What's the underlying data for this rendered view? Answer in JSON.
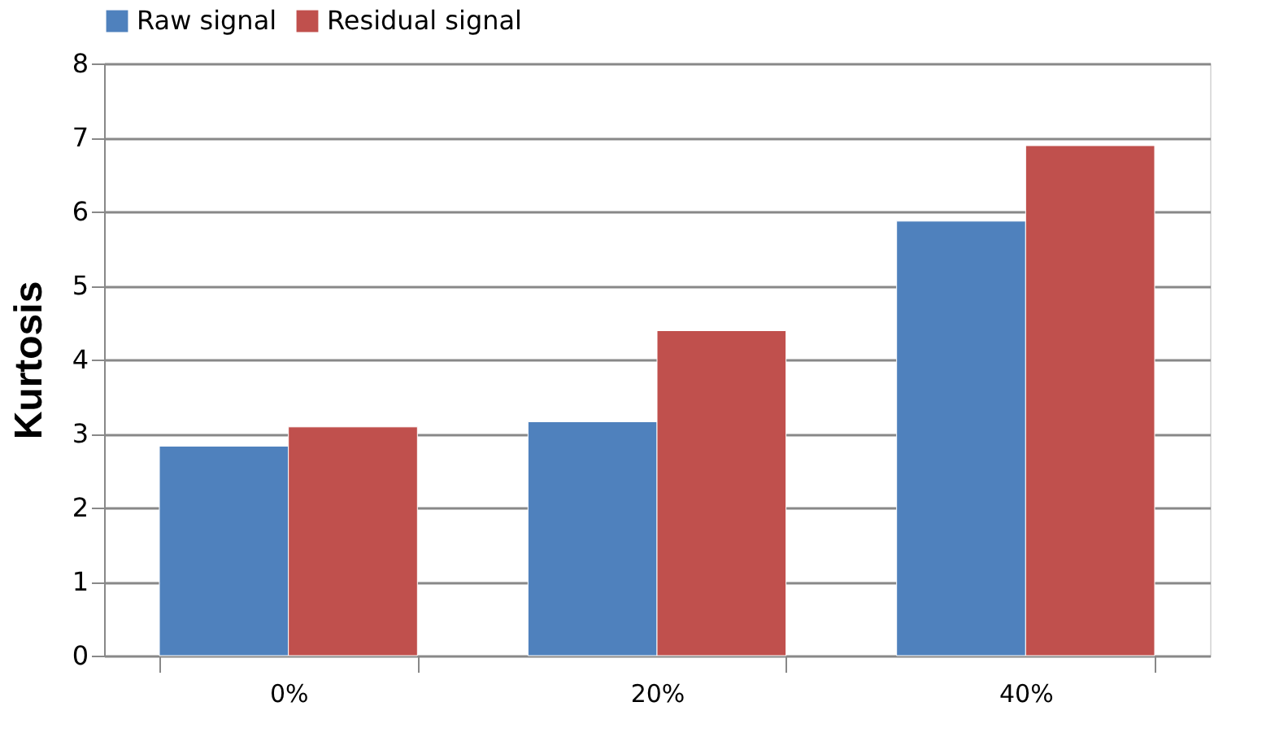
{
  "chart_data": {
    "type": "bar",
    "ylabel": "Kurtosis",
    "categories": [
      "0%",
      "20%",
      "40%"
    ],
    "series": [
      {
        "name": "Raw signal",
        "color": "#4f81bd",
        "values": [
          2.83,
          3.16,
          5.87
        ]
      },
      {
        "name": "Residual signal",
        "color": "#c0504d",
        "values": [
          3.09,
          4.39,
          6.89
        ]
      }
    ],
    "ylim": [
      0,
      8
    ],
    "yticks": [
      0,
      1,
      2,
      3,
      4,
      5,
      6,
      7,
      8
    ],
    "grid": "y",
    "legend": "top"
  }
}
